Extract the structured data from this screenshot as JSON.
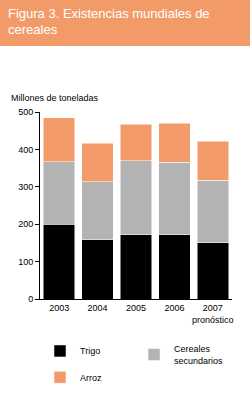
{
  "chart_data": {
    "type": "bar",
    "title": "Figura 3. Existencias mundiales de cereales",
    "y_label": "Millones de toneladas",
    "categories": [
      "2003",
      "2004",
      "2005",
      "2006",
      "2007 pronóstico"
    ],
    "series": [
      {
        "name": "Trigo",
        "color": "#000000",
        "values": [
          200,
          158,
          172,
          172,
          150
        ]
      },
      {
        "name": "Cereales secundarios",
        "color": "#b3b3b3",
        "values": [
          167,
          155,
          198,
          193,
          167
        ]
      },
      {
        "name": "Arroz",
        "color": "#f29b68",
        "values": [
          117,
          103,
          97,
          105,
          105
        ]
      }
    ],
    "stacked": true,
    "ylim": [
      0,
      500
    ],
    "yticks": [
      0,
      100,
      200,
      300,
      400,
      500
    ],
    "grid": false,
    "legend": "bottom"
  }
}
